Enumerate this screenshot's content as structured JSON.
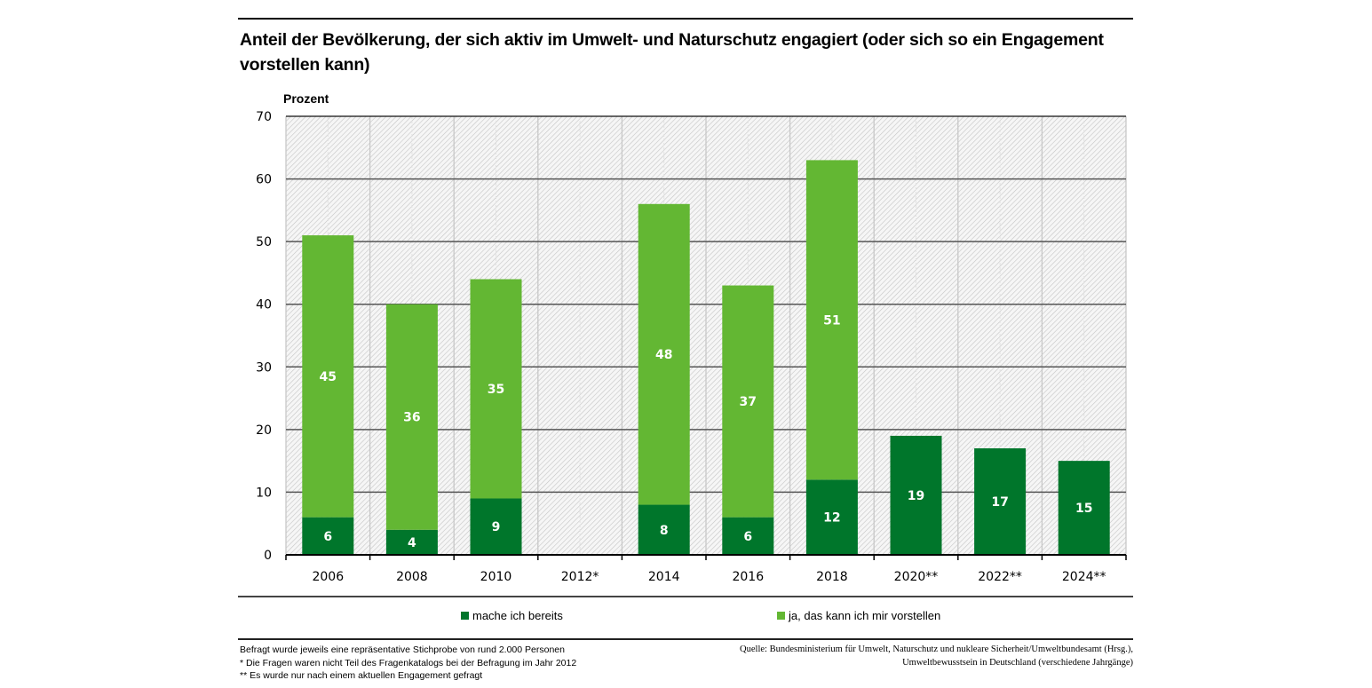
{
  "title": "Anteil der Bevölkerung, der sich aktiv im Umwelt- und Naturschutz engagiert (oder sich so ein Engagement vorstellen kann)",
  "colors": {
    "dark_green": "#00762b",
    "light_green": "#63b733",
    "gridline": "#444444",
    "hatch_bg": "#f4f4f4",
    "hatch_line": "#c8c8c8"
  },
  "chart_data": {
    "type": "bar",
    "stacked": true,
    "title": "Anteil der Bevölkerung, der sich aktiv im Umwelt- und Naturschutz engagiert (oder sich so ein Engagement vorstellen kann)",
    "xlabel": "",
    "ylabel": "Prozent",
    "ylim": [
      0,
      70
    ],
    "yticks": [
      0,
      10,
      20,
      30,
      40,
      50,
      60,
      70
    ],
    "grid": true,
    "legend_position": "bottom",
    "categories": [
      "2006",
      "2008",
      "2010",
      "2012*",
      "2014",
      "2016",
      "2018",
      "2020**",
      "2022**",
      "2024**"
    ],
    "series": [
      {
        "name": "mache ich bereits",
        "color": "#00762b",
        "values": [
          6,
          4,
          9,
          null,
          8,
          6,
          12,
          19,
          17,
          15
        ]
      },
      {
        "name": "ja, das kann ich mir vorstellen",
        "color": "#63b733",
        "values": [
          45,
          36,
          35,
          null,
          48,
          37,
          51,
          null,
          null,
          null
        ]
      }
    ]
  },
  "legend": [
    {
      "label": "mache ich bereits",
      "color": "#00762b"
    },
    {
      "label": "ja, das kann ich mir vorstellen",
      "color": "#63b733"
    }
  ],
  "notes": [
    "Befragt wurde jeweils eine repräsentative Stichprobe von rund 2.000 Personen",
    "* Die Fragen waren nicht Teil des Fragenkatalogs bei der Befragung im Jahr 2012",
    "** Es wurde nur nach einem aktuellen Engagement gefragt"
  ],
  "source": [
    "Quelle: Bundesministerium für Umwelt, Naturschutz und nukleare Sicherheit/Umweltbundesamt (Hrsg.),",
    "Umweltbewusstsein in Deutschland (verschiedene Jahrgänge)"
  ]
}
